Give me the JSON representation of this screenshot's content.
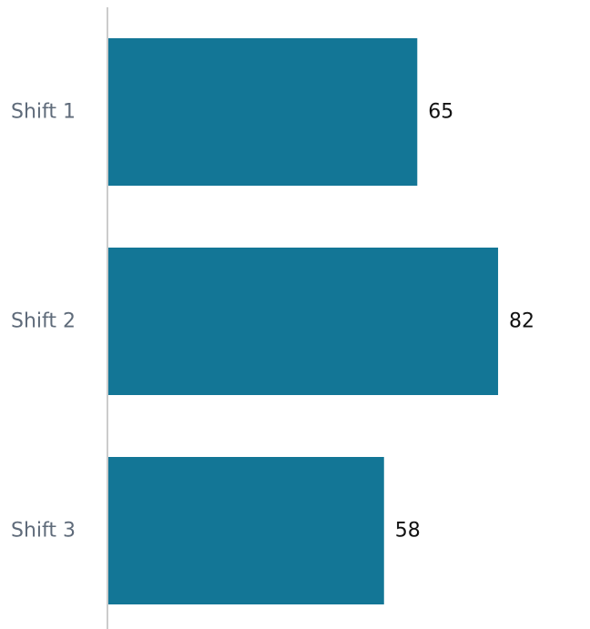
{
  "chart_data": {
    "type": "bar",
    "orientation": "horizontal",
    "categories": [
      "Shift 1",
      "Shift 2",
      "Shift 3"
    ],
    "values": [
      65,
      82,
      58
    ],
    "data_labels": [
      "65",
      "82",
      "58"
    ],
    "title": "",
    "xlabel": "",
    "ylabel": "",
    "xlim": [
      0,
      100
    ],
    "grid": false,
    "legend": "none",
    "colors": {
      "bar": "#137696",
      "axis": "#cccccc",
      "category_text": "#5f6b7a",
      "value_text": "#111111"
    }
  }
}
